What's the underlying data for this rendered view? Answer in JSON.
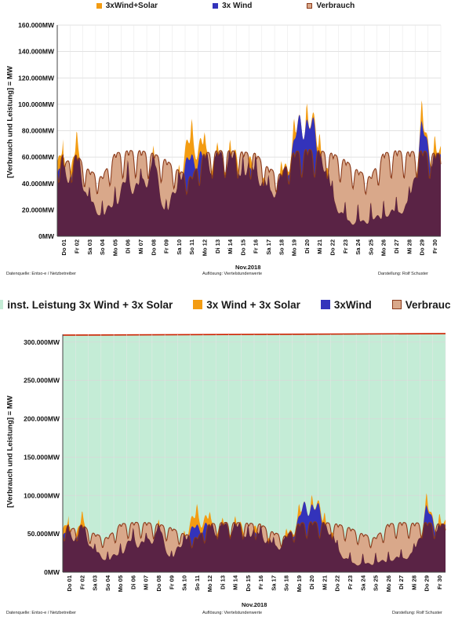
{
  "chart_data": [
    {
      "type": "area",
      "ylabel": "[Verbrauch und Leistung] = MW",
      "xlabel": "Nov.2018",
      "ylim": [
        0,
        160000
      ],
      "yticks": [
        "0MW",
        "20.000MW",
        "40.000MW",
        "60.000MW",
        "80.000MW",
        "100.000MW",
        "120.000MW",
        "140.000MW",
        "160.000MW"
      ],
      "ytick_values": [
        0,
        20000,
        40000,
        60000,
        80000,
        100000,
        120000,
        140000,
        160000
      ],
      "categories": [
        "Do 01",
        "Fr 02",
        "Sa 03",
        "So 04",
        "Mo 05",
        "Di 06",
        "Mi 07",
        "Do 08",
        "Fr 09",
        "Sa 10",
        "So 11",
        "Mo 12",
        "Di 13",
        "Mi 14",
        "Do 15",
        "Fr 16",
        "Sa 17",
        "So 18",
        "Mo 19",
        "Di 20",
        "Mi 21",
        "Do 22",
        "Fr 23",
        "Sa 24",
        "So 25",
        "Mo 26",
        "Di 27",
        "Mi 28",
        "Do 29",
        "Fr 30"
      ],
      "grid": true,
      "legend_position": "top",
      "series": [
        {
          "name": "3xWind+Solar",
          "color": "#f39c12",
          "values": [
            42000,
            62000,
            25000,
            15000,
            25000,
            42000,
            35000,
            55000,
            15000,
            42000,
            75000,
            62000,
            55000,
            60000,
            50000,
            52000,
            32000,
            40000,
            72000,
            90000,
            70000,
            30000,
            12000,
            10000,
            12000,
            15000,
            18000,
            22000,
            80000,
            60000
          ]
        },
        {
          "name": "3x Wind",
          "color": "#3333bb",
          "values": [
            35000,
            52000,
            18000,
            10000,
            18000,
            33000,
            28000,
            45000,
            8000,
            33000,
            62000,
            55000,
            50000,
            55000,
            42000,
            45000,
            25000,
            35000,
            70000,
            92000,
            62000,
            25000,
            8000,
            6000,
            8000,
            10000,
            12000,
            18000,
            78000,
            55000
          ]
        },
        {
          "name": "Verbrauch",
          "color": "#d9a88a",
          "values": [
            55000,
            62000,
            50000,
            45000,
            63000,
            65000,
            65000,
            63000,
            58000,
            50000,
            45000,
            63000,
            65000,
            65000,
            64000,
            63000,
            52000,
            47000,
            64000,
            66000,
            65000,
            63000,
            58000,
            50000,
            45000,
            63000,
            65000,
            64000,
            65000,
            63000
          ]
        }
      ],
      "source": "Datenquelle:  Entso-e  / Netzbetreiber",
      "resolution": "Auflösung: Viertelstundenwerte",
      "author": "Darstellung: Rolf Schuster"
    },
    {
      "type": "area",
      "ylabel": "[Verbrauch und Leistung] = MW",
      "xlabel": "Nov.2018",
      "ylim": [
        0,
        310000
      ],
      "yticks": [
        "0MW",
        "50.000MW",
        "100.000MW",
        "150.000MW",
        "200.000MW",
        "250.000MW",
        "300.000MW"
      ],
      "ytick_values": [
        0,
        50000,
        100000,
        150000,
        200000,
        250000,
        300000
      ],
      "categories": [
        "Do 01",
        "Fr 02",
        "Sa 03",
        "So 04",
        "Mo 05",
        "Di 06",
        "Mi 07",
        "Do 08",
        "Fr 09",
        "Sa 10",
        "So 11",
        "Mo 12",
        "Di 13",
        "Mi 14",
        "Do 15",
        "Fr 16",
        "Sa 17",
        "So 18",
        "Mo 19",
        "Di 20",
        "Mi 21",
        "Do 22",
        "Fr 23",
        "Sa 24",
        "So 25",
        "Mo 26",
        "Di 27",
        "Mi 28",
        "Do 29",
        "Fr 30"
      ],
      "grid": true,
      "legend_position": "top",
      "installed_capacity": {
        "name": "inst. Leistung 3x Wind + 3x Solar",
        "color": "#c4ecd6",
        "line_color": "#cc2200",
        "start": 309000,
        "end": 311000
      },
      "series": [
        {
          "name": "3x Wind + 3x Solar",
          "color": "#f39c12",
          "values": [
            42000,
            62000,
            25000,
            15000,
            25000,
            42000,
            35000,
            55000,
            15000,
            42000,
            75000,
            62000,
            55000,
            60000,
            50000,
            52000,
            32000,
            40000,
            72000,
            90000,
            70000,
            30000,
            12000,
            10000,
            12000,
            15000,
            18000,
            22000,
            80000,
            60000
          ]
        },
        {
          "name": "3xWind",
          "color": "#3333bb",
          "values": [
            35000,
            52000,
            18000,
            10000,
            18000,
            33000,
            28000,
            45000,
            8000,
            33000,
            62000,
            55000,
            50000,
            55000,
            42000,
            45000,
            25000,
            35000,
            70000,
            92000,
            62000,
            25000,
            8000,
            6000,
            8000,
            10000,
            12000,
            18000,
            78000,
            55000
          ]
        },
        {
          "name": "Verbrauch",
          "color": "#d9a88a",
          "values": [
            55000,
            62000,
            50000,
            45000,
            63000,
            65000,
            65000,
            63000,
            58000,
            50000,
            45000,
            63000,
            65000,
            65000,
            64000,
            63000,
            52000,
            47000,
            64000,
            66000,
            65000,
            63000,
            58000,
            50000,
            45000,
            63000,
            65000,
            64000,
            65000,
            63000
          ]
        }
      ],
      "source": "Datenquelle:  Entso-e  / Netzbetreiber",
      "resolution": "Auflösung: Viertelstundenwerte",
      "author": "Darstellung: Rolf Schuster"
    }
  ]
}
